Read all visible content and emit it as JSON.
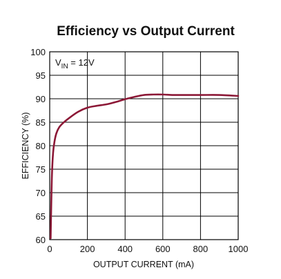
{
  "chart_data": {
    "type": "line",
    "title": "Efficiency vs Output Current",
    "xlabel": "OUTPUT CURRENT (mA)",
    "ylabel": "EFFICIENCY (%)",
    "xlim": [
      0,
      1000
    ],
    "ylim": [
      60,
      100
    ],
    "xticks": [
      0,
      200,
      400,
      600,
      800,
      1000
    ],
    "yticks": [
      60,
      65,
      70,
      75,
      80,
      85,
      90,
      95,
      100
    ],
    "grid": true,
    "annotation": {
      "prefix": "V",
      "subscript": "IN",
      "suffix": " = 12V"
    },
    "series": [
      {
        "color": "#8c1836",
        "x": [
          5,
          8,
          12,
          18,
          25,
          35,
          50,
          70,
          100,
          150,
          200,
          250,
          300,
          350,
          400,
          450,
          500,
          550,
          600,
          650,
          700,
          800,
          900,
          1000
        ],
        "y": [
          60.3,
          67,
          74,
          78.5,
          80.8,
          82.6,
          83.9,
          84.8,
          85.8,
          87.2,
          88.1,
          88.5,
          88.8,
          89.3,
          89.9,
          90.4,
          90.8,
          90.9,
          90.9,
          90.8,
          90.8,
          90.8,
          90.8,
          90.6
        ]
      }
    ]
  }
}
